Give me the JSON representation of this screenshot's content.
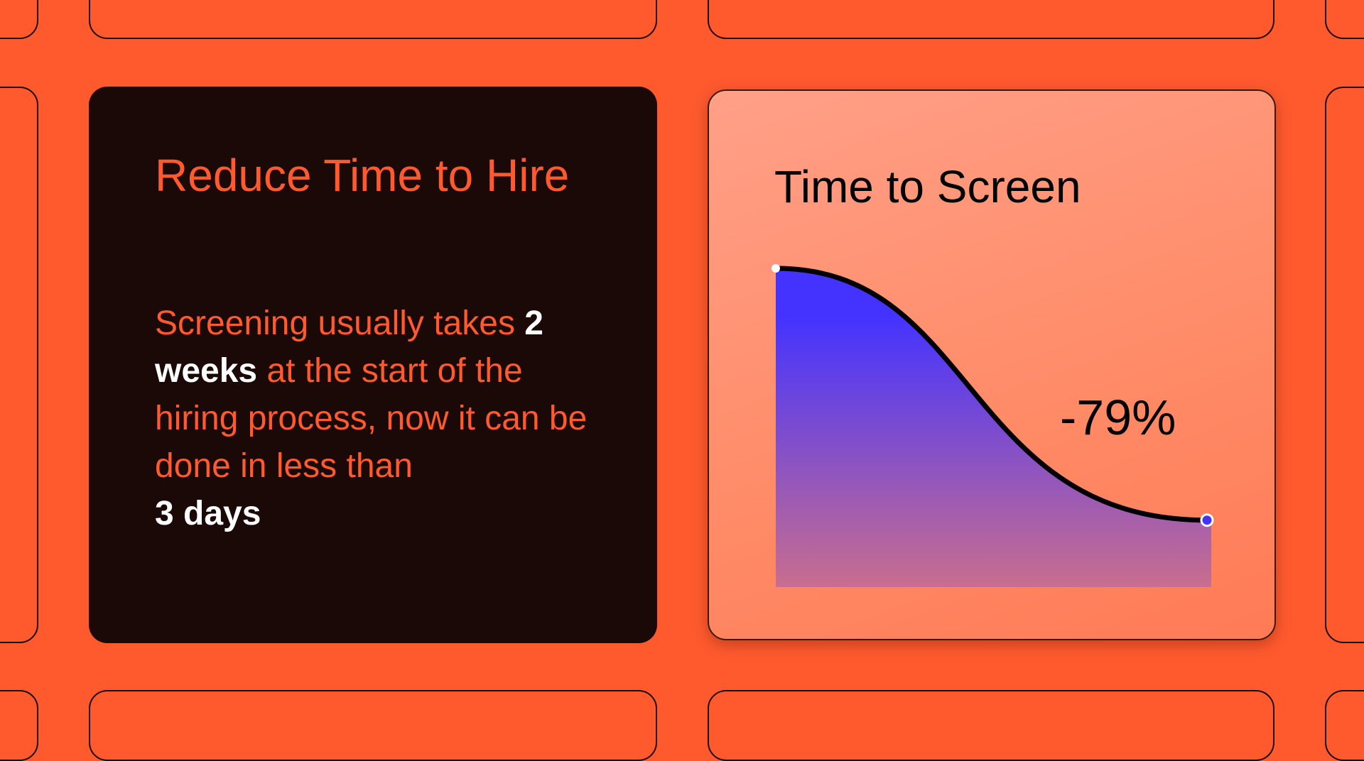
{
  "left_card": {
    "heading": "Reduce Time to Hire",
    "body_parts": [
      "Screening usually takes ",
      "2 weeks",
      " at the start of the hiring process, now it can be done in less than ",
      "3 days"
    ]
  },
  "chart_data": {
    "type": "area",
    "title": "Time to Screen",
    "annotation": "-79%",
    "x": [
      0,
      1
    ],
    "values": [
      100,
      21
    ],
    "colors": {
      "fill_top": "#4433ff",
      "fill_bottom": "#c86e8e",
      "line": "#000000",
      "start_point": "#ffffff",
      "end_point": "#4433ff"
    }
  },
  "colors": {
    "background": "#ff5a2e",
    "dark_card": "#1a0907",
    "accent_text": "#ff5a2e",
    "highlight_text": "#ffffff"
  }
}
